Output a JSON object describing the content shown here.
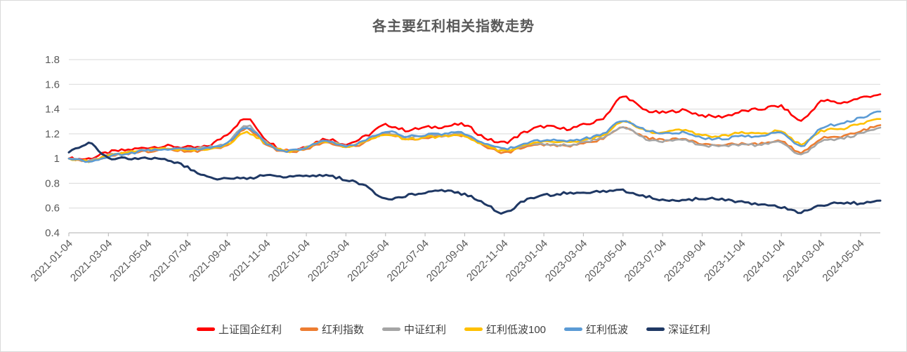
{
  "chart": {
    "title": "各主要红利相关指数走势"
  },
  "chart_data": {
    "type": "line",
    "title": "各主要红利相关指数走势",
    "xlabel": "",
    "ylabel": "",
    "grid": "horizontal",
    "legend_position": "bottom",
    "ylim": [
      0.4,
      1.8
    ],
    "y_tick_labels": [
      "0.4",
      "0.6",
      "0.8",
      "1",
      "1.2",
      "1.4",
      "1.6",
      "1.8"
    ],
    "y_tick_values": [
      0.4,
      0.6,
      0.8,
      1.0,
      1.2,
      1.4,
      1.6,
      1.8
    ],
    "x_tick_labels": [
      "2021-01-04",
      "2021-03-04",
      "2021-05-04",
      "2021-07-04",
      "2021-09-04",
      "2021-11-04",
      "2022-01-04",
      "2022-03-04",
      "2022-05-04",
      "2022-07-04",
      "2022-09-04",
      "2022-11-04",
      "2023-01-04",
      "2023-03-04",
      "2023-05-04",
      "2023-07-04",
      "2023-09-04",
      "2023-11-04",
      "2024-01-04",
      "2024-03-04",
      "2024-05-04"
    ],
    "x_anchor_start": "2021-01",
    "x_anchor_end": "2024-06",
    "x_anchor_step": "1 month (values are monthly estimates read from the plot)",
    "axis_color": "#bfbfbf",
    "gridline_color": "#d9d9d9",
    "tick_label_color": "#595959",
    "series": [
      {
        "name": "上证国企红利",
        "color": "#ff0000",
        "values": [
          1.0,
          1.0,
          1.05,
          1.07,
          1.09,
          1.1,
          1.09,
          1.1,
          1.2,
          1.32,
          1.15,
          1.07,
          1.1,
          1.16,
          1.12,
          1.18,
          1.27,
          1.23,
          1.25,
          1.26,
          1.27,
          1.17,
          1.13,
          1.21,
          1.26,
          1.24,
          1.27,
          1.33,
          1.5,
          1.4,
          1.37,
          1.39,
          1.35,
          1.34,
          1.38,
          1.4,
          1.42,
          1.31,
          1.46,
          1.45,
          1.49,
          1.52
        ]
      },
      {
        "name": "红利指数",
        "color": "#ed7d31",
        "values": [
          1.0,
          0.98,
          1.02,
          1.04,
          1.06,
          1.07,
          1.06,
          1.07,
          1.11,
          1.24,
          1.11,
          1.05,
          1.08,
          1.13,
          1.09,
          1.13,
          1.2,
          1.16,
          1.17,
          1.18,
          1.18,
          1.1,
          1.05,
          1.09,
          1.11,
          1.1,
          1.12,
          1.16,
          1.26,
          1.18,
          1.15,
          1.16,
          1.12,
          1.11,
          1.12,
          1.12,
          1.14,
          1.05,
          1.16,
          1.18,
          1.22,
          1.27
        ]
      },
      {
        "name": "中证红利",
        "color": "#a5a5a5",
        "values": [
          1.0,
          0.98,
          1.03,
          1.05,
          1.07,
          1.08,
          1.08,
          1.09,
          1.13,
          1.27,
          1.13,
          1.06,
          1.09,
          1.14,
          1.1,
          1.14,
          1.21,
          1.17,
          1.18,
          1.19,
          1.19,
          1.11,
          1.06,
          1.1,
          1.12,
          1.11,
          1.13,
          1.17,
          1.25,
          1.17,
          1.14,
          1.15,
          1.11,
          1.1,
          1.11,
          1.11,
          1.13,
          1.03,
          1.14,
          1.16,
          1.2,
          1.25
        ]
      },
      {
        "name": "红利低波100",
        "color": "#ffc000",
        "values": [
          1.0,
          0.98,
          1.03,
          1.05,
          1.07,
          1.08,
          1.07,
          1.08,
          1.11,
          1.21,
          1.12,
          1.06,
          1.09,
          1.14,
          1.1,
          1.14,
          1.2,
          1.16,
          1.17,
          1.18,
          1.18,
          1.11,
          1.06,
          1.11,
          1.14,
          1.13,
          1.15,
          1.19,
          1.3,
          1.23,
          1.21,
          1.23,
          1.19,
          1.18,
          1.21,
          1.2,
          1.22,
          1.12,
          1.22,
          1.24,
          1.28,
          1.32
        ]
      },
      {
        "name": "红利低波",
        "color": "#5b9bd5",
        "values": [
          1.0,
          0.98,
          1.02,
          1.04,
          1.07,
          1.08,
          1.08,
          1.09,
          1.12,
          1.25,
          1.12,
          1.06,
          1.09,
          1.14,
          1.1,
          1.15,
          1.22,
          1.18,
          1.19,
          1.2,
          1.2,
          1.12,
          1.08,
          1.12,
          1.15,
          1.14,
          1.16,
          1.2,
          1.31,
          1.24,
          1.2,
          1.21,
          1.17,
          1.16,
          1.18,
          1.18,
          1.21,
          1.1,
          1.25,
          1.28,
          1.33,
          1.38
        ]
      },
      {
        "name": "深证红利",
        "color": "#1f3864",
        "values": [
          1.05,
          1.12,
          1.01,
          1.0,
          1.0,
          0.99,
          0.93,
          0.85,
          0.84,
          0.84,
          0.86,
          0.85,
          0.86,
          0.86,
          0.83,
          0.78,
          0.67,
          0.7,
          0.73,
          0.74,
          0.71,
          0.64,
          0.56,
          0.66,
          0.7,
          0.72,
          0.73,
          0.73,
          0.74,
          0.7,
          0.67,
          0.66,
          0.68,
          0.67,
          0.65,
          0.63,
          0.61,
          0.57,
          0.62,
          0.64,
          0.64,
          0.66
        ]
      }
    ]
  }
}
